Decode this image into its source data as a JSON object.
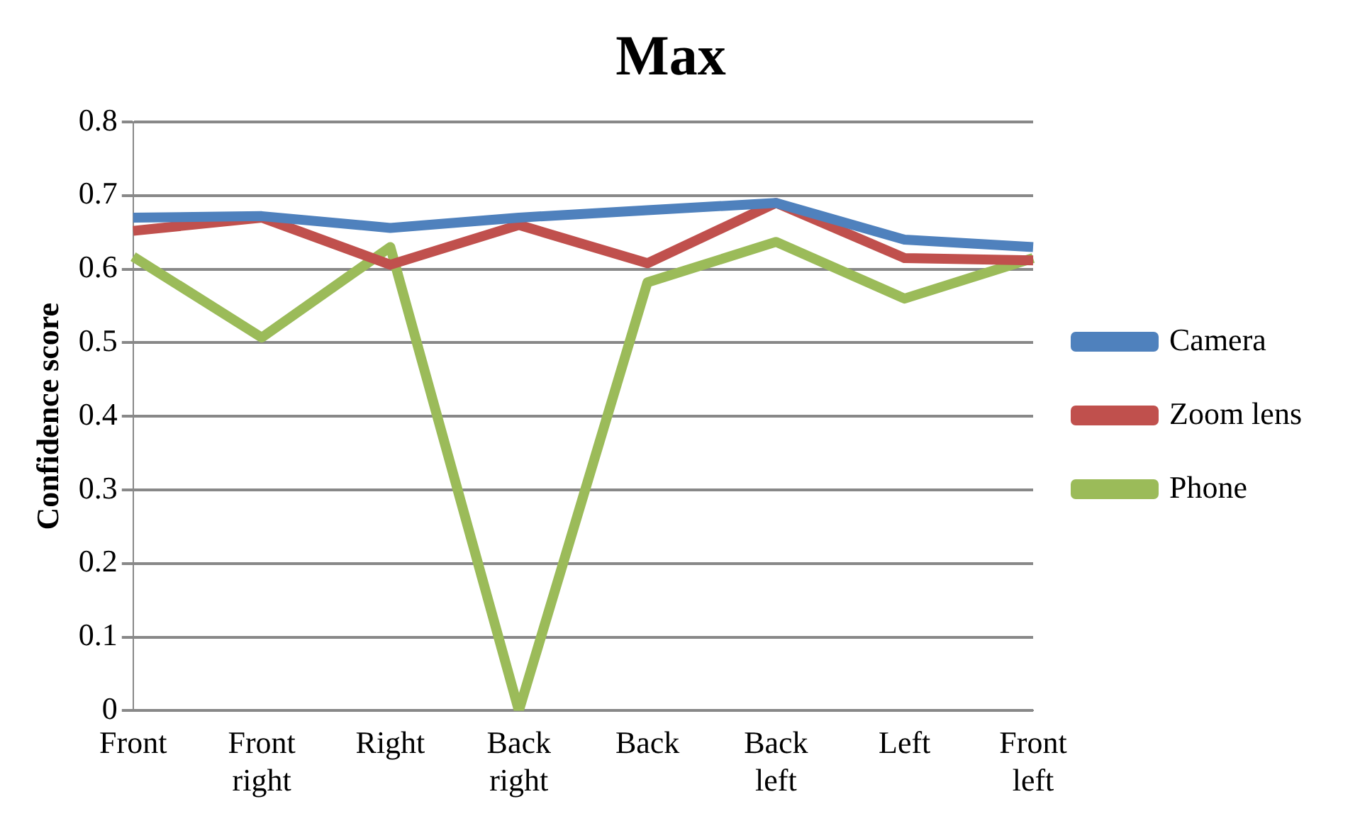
{
  "chart_data": {
    "type": "line",
    "title": "Max",
    "ylabel": "Confidence score",
    "categories": [
      "Front",
      "Front right",
      "Right",
      "Back right",
      "Back",
      "Back left",
      "Left",
      "Front left"
    ],
    "series": [
      {
        "name": "Camera",
        "color": "#4f81bd",
        "values": [
          0.67,
          0.672,
          0.656,
          0.67,
          0.68,
          0.69,
          0.64,
          0.63
        ]
      },
      {
        "name": "Zoom lens",
        "color": "#c0504d",
        "values": [
          0.652,
          0.67,
          0.606,
          0.66,
          0.608,
          0.69,
          0.615,
          0.612
        ]
      },
      {
        "name": "Phone",
        "color": "#9bbb59",
        "values": [
          0.617,
          0.507,
          0.63,
          0,
          0.582,
          0.637,
          0.56,
          0.615
        ]
      }
    ],
    "ylim": [
      0,
      0.8
    ],
    "yticks": [
      0,
      0.1,
      0.2,
      0.3,
      0.4,
      0.5,
      0.6,
      0.7,
      0.8
    ],
    "grid": "y",
    "legend": "right",
    "marker": "none",
    "line_style": "solid"
  }
}
